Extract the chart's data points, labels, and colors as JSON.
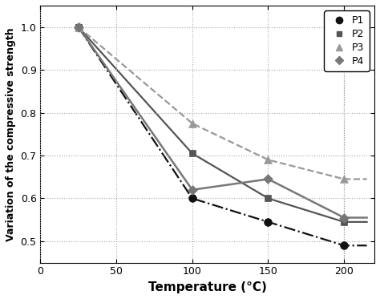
{
  "title": "",
  "xlabel": "Temperature (°C)",
  "ylabel": "Variation of the compressive strength",
  "xlim": [
    0,
    220
  ],
  "ylim": [
    0.45,
    1.05
  ],
  "yticks": [
    0.5,
    0.6,
    0.7,
    0.8,
    0.9,
    1.0
  ],
  "xticks": [
    0,
    50,
    100,
    150,
    200
  ],
  "grid_color": "#aaaaaa",
  "P1": {
    "x": [
      25,
      100,
      150,
      200
    ],
    "y": [
      1.0,
      0.6,
      0.545,
      0.49
    ],
    "color": "#111111",
    "marker": "o",
    "linestyle": "-.",
    "label": "P1",
    "lw": 1.6,
    "ms": 7
  },
  "P2": {
    "x": [
      25,
      100,
      150,
      200
    ],
    "y": [
      1.0,
      0.705,
      0.6,
      0.545
    ],
    "color": "#555555",
    "marker": "s",
    "linestyle": "-",
    "label": "P2",
    "lw": 1.6,
    "ms": 6
  },
  "P3": {
    "x": [
      25,
      100,
      150,
      200
    ],
    "y": [
      1.0,
      0.775,
      0.69,
      0.645
    ],
    "color": "#999999",
    "marker": "^",
    "linestyle": "--",
    "label": "P3",
    "lw": 1.6,
    "ms": 7
  },
  "P4": {
    "x": [
      25,
      100,
      150,
      200
    ],
    "y": [
      1.0,
      0.62,
      0.645,
      0.555
    ],
    "color": "#777777",
    "marker": "D",
    "linestyle": "-",
    "label": "P4",
    "lw": 1.8,
    "ms": 6
  },
  "curve_fit_points": 300
}
